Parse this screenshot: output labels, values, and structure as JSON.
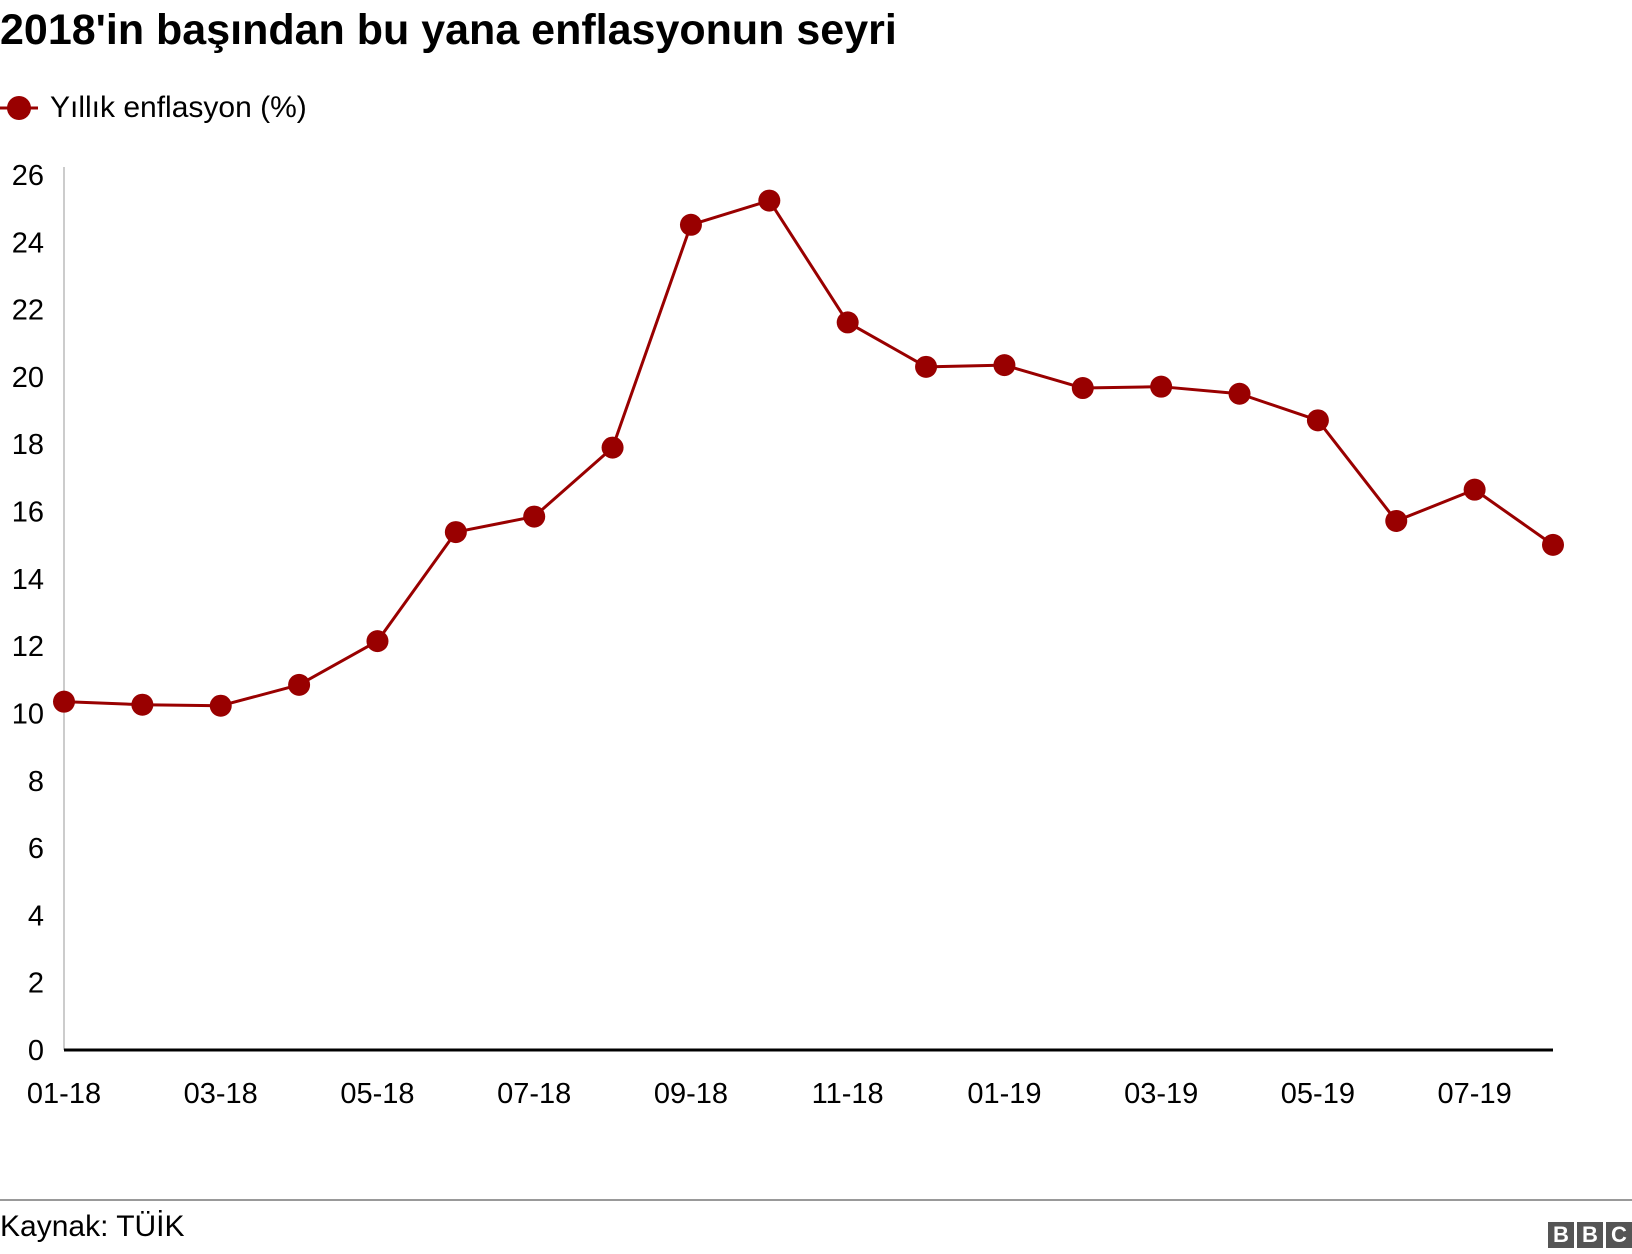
{
  "title": "2018'in başından bu yana enflasyonun seyri",
  "legend": {
    "label": "Yıllık enflasyon (%)"
  },
  "source": "Kaynak: TÜİK",
  "logo": {
    "letters": [
      "B",
      "B",
      "C"
    ]
  },
  "colors": {
    "series": "#990000",
    "axis": "#000000",
    "gridline": "#cccccc"
  },
  "chart_data": {
    "type": "line",
    "x": [
      "01-18",
      "02-18",
      "03-18",
      "04-18",
      "05-18",
      "06-18",
      "07-18",
      "08-18",
      "09-18",
      "10-18",
      "11-18",
      "12-18",
      "01-19",
      "02-19",
      "03-19",
      "04-19",
      "05-19",
      "06-19",
      "07-19",
      "08-19"
    ],
    "x_tick_labels": [
      "01-18",
      "03-18",
      "05-18",
      "07-18",
      "09-18",
      "11-18",
      "01-19",
      "03-19",
      "05-19",
      "07-19"
    ],
    "series": [
      {
        "name": "Yıllık enflasyon (%)",
        "values": [
          10.35,
          10.26,
          10.23,
          10.85,
          12.15,
          15.39,
          15.85,
          17.9,
          24.52,
          25.24,
          21.62,
          20.3,
          20.35,
          19.67,
          19.71,
          19.5,
          18.71,
          15.72,
          16.65,
          15.01
        ]
      }
    ],
    "y_ticks": [
      0,
      2,
      4,
      6,
      8,
      10,
      12,
      14,
      16,
      18,
      20,
      22,
      24,
      26
    ],
    "ylim": [
      0,
      26
    ],
    "xlabel": "",
    "ylabel": "",
    "grid": false,
    "legend_position": "top-left"
  }
}
